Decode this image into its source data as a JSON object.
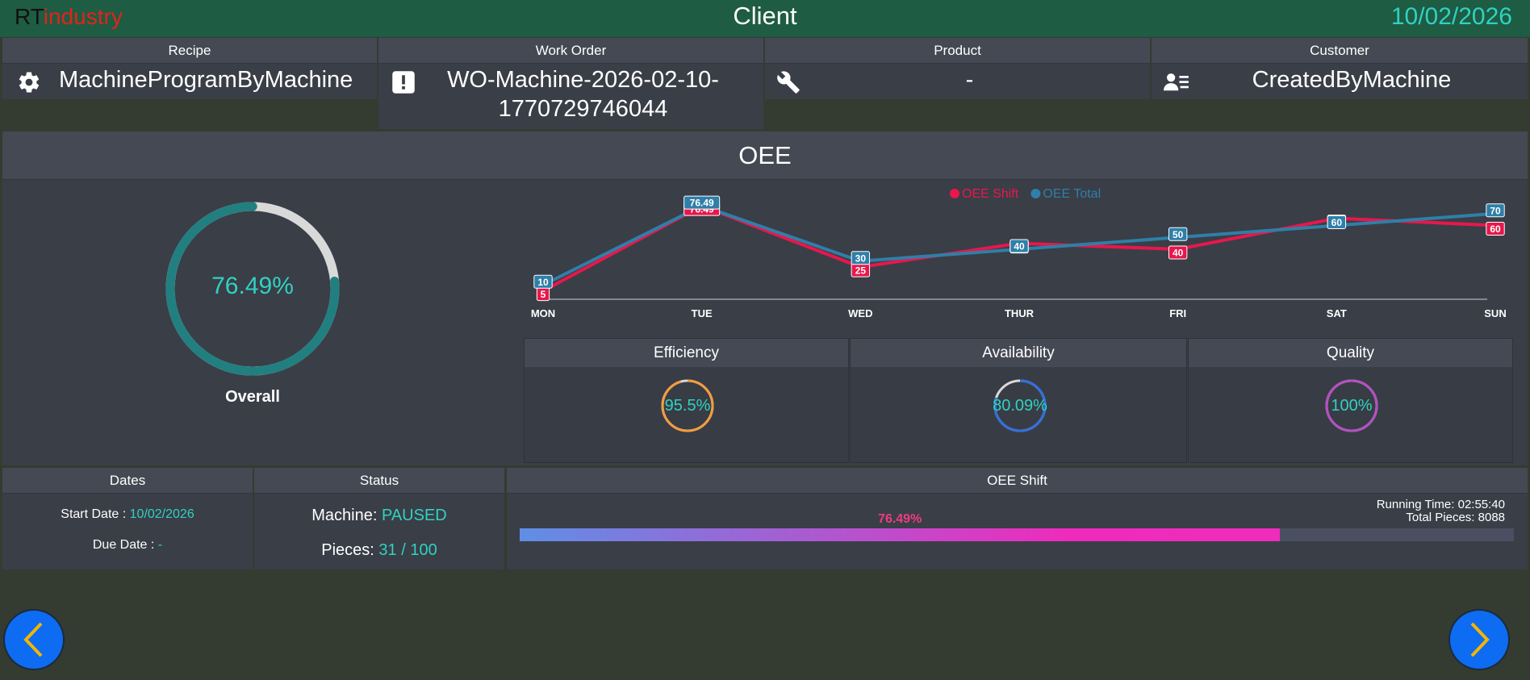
{
  "header": {
    "brand_rt": "RT",
    "brand_industry": "industry",
    "title": "Client",
    "date": "10/02/2026"
  },
  "info": {
    "recipe": {
      "label": "Recipe",
      "value": "MachineProgramByMachine",
      "icon": "gear-icon"
    },
    "work_order": {
      "label": "Work Order",
      "value_line1": "WO-Machine-2026-02-10-",
      "value_line2": "1770729746044",
      "icon": "exclamation-icon"
    },
    "product": {
      "label": "Product",
      "value": "-",
      "icon": "wrench-icon"
    },
    "customer": {
      "label": "Customer",
      "value": "CreatedByMachine",
      "icon": "user-list-icon"
    }
  },
  "oee": {
    "title": "OEE",
    "overall_value": "76.49%",
    "overall_fraction": 0.7649,
    "overall_label": "Overall",
    "efficiency": {
      "label": "Efficiency",
      "value": "95.5%",
      "fraction": 0.955,
      "color": "#f39c3c"
    },
    "availability": {
      "label": "Availability",
      "value": "80.09%",
      "fraction": 0.8009,
      "color": "#2f6fe0"
    },
    "quality": {
      "label": "Quality",
      "value": "100%",
      "fraction": 1.0,
      "color": "#b44fc2"
    }
  },
  "chart_data": {
    "type": "line",
    "categories": [
      "MON",
      "TUE",
      "WED",
      "THUR",
      "FRI",
      "SAT",
      "SUN"
    ],
    "series": [
      {
        "name": "OEE Shift",
        "color": "#e8174c",
        "values": [
          5,
          76.49,
          25,
          45,
          40,
          66,
          60
        ],
        "labels": [
          "5",
          "76.49",
          "25",
          "45",
          "40",
          "66",
          "60"
        ]
      },
      {
        "name": "OEE Total",
        "color": "#2f7fa8",
        "values": [
          10,
          76.49,
          30,
          40,
          50,
          60,
          70
        ],
        "labels": [
          "10",
          "76.49",
          "30",
          "40",
          "50",
          "60",
          "70"
        ]
      }
    ],
    "ylim": [
      0,
      80
    ],
    "legend": "top-center"
  },
  "dates": {
    "label": "Dates",
    "start_label": "Start Date : ",
    "start_value": "10/02/2026",
    "due_label": "Due Date : ",
    "due_value": "-"
  },
  "status": {
    "label": "Status",
    "machine_label": "Machine: ",
    "machine_value": "PAUSED",
    "pieces_label": "Pieces: ",
    "pieces_value": "31 / 100"
  },
  "oee_shift": {
    "label": "OEE Shift",
    "percent_text": "76.49%",
    "fraction": 0.7649,
    "running_time": "Running Time: 02:55:40",
    "total_pieces": "Total Pieces: 8088"
  },
  "nav": {
    "prev_icon": "chevron-left-icon",
    "next_icon": "chevron-right-icon"
  }
}
